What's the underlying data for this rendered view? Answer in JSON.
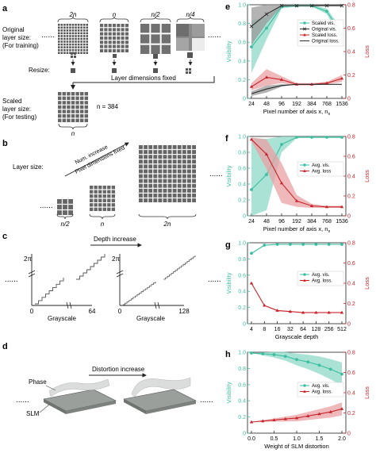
{
  "colors": {
    "teal": "#3bbfa1",
    "dark": "#2b2b2b",
    "red": "#c8242b",
    "teal_fill": "#8ed9c7",
    "red_fill": "#e9a0a3",
    "grey_fill": "#9a9a9a",
    "grid": "#6d6d6d"
  },
  "panels": {
    "a": {
      "letter": "a",
      "sizes": [
        "2n",
        "n",
        "n/2",
        "n/4"
      ],
      "original_label": [
        "Original",
        "layer size:",
        "(For training)"
      ],
      "resize_label": "Resize:",
      "fixed_label": "Layer dimensions fixed",
      "scaled_label": [
        "Scaled",
        "layer size:",
        "(For testing)"
      ],
      "n_value": "n = 384",
      "n_under": "n"
    },
    "b": {
      "letter": "b",
      "layer_size_label": "Layer size:",
      "arrow_text1": "Num. increase",
      "arrow_text2": "Pixel dimensions fixed",
      "sizes": [
        "n/2",
        "n",
        "2n"
      ]
    },
    "c": {
      "letter": "c",
      "depth_label": "Depth increase",
      "two_pi": "2π",
      "zero_a": "0",
      "end_a": "64",
      "zero_b": "0",
      "end_b": "128",
      "grayscale_a": "Grayscale",
      "grayscale_b": "Grayscale"
    },
    "d": {
      "letter": "d",
      "distortion_label": "Distortion increase",
      "phase_label": "Phase",
      "slm_label": "SLM"
    }
  },
  "chart_data": [
    {
      "id": "e",
      "letter": "e",
      "type": "line",
      "x_ticks": [
        "24",
        "48",
        "96",
        "192",
        "384",
        "768",
        "1536"
      ],
      "xlabel": "Pixel number of axis x, n",
      "xlabel_sub": "x",
      "ylabel_left": "Visibility",
      "ylabel_right": "Loss",
      "ylim_left": [
        0,
        1.0
      ],
      "ylim_right": [
        0,
        0.8
      ],
      "yticks_left": [
        "0",
        "0.2",
        "0.4",
        "0.6",
        "0.8",
        "1.0"
      ],
      "yticks_right": [
        "0",
        "0.2",
        "0.4",
        "0.6",
        "0.8"
      ],
      "legend": "top-right",
      "series": [
        {
          "name": "Scaled vis.",
          "axis": "left",
          "color": "teal",
          "marker": "circle",
          "values": [
            0.55,
            0.75,
            0.98,
            0.99,
            0.99,
            0.93,
            0.68
          ]
        },
        {
          "name": "Original vis.",
          "axis": "left",
          "color": "dark",
          "marker": "cross",
          "values": [
            0.77,
            0.9,
            0.99,
            0.99,
            0.99,
            0.99,
            0.99
          ]
        },
        {
          "name": "Scaled loss.",
          "axis": "right",
          "color": "red",
          "marker": "triangle",
          "values": [
            0.1,
            0.18,
            0.16,
            0.12,
            0.12,
            0.13,
            0.17
          ]
        },
        {
          "name": "Original loss.",
          "axis": "right",
          "color": "dark",
          "marker": "none",
          "values": [
            0.04,
            0.08,
            0.11,
            0.12,
            0.12,
            0.12,
            0.12
          ]
        }
      ]
    },
    {
      "id": "f",
      "letter": "f",
      "type": "line",
      "x_ticks": [
        "24",
        "48",
        "96",
        "192",
        "384",
        "768",
        "1536"
      ],
      "xlabel": "Pixel number of axis x, n",
      "xlabel_sub": "x",
      "ylabel_left": "Visibility",
      "ylabel_right": "Loss",
      "ylim_left": [
        0,
        1.0
      ],
      "ylim_right": [
        0,
        0.8
      ],
      "yticks_left": [
        "0",
        "0.2",
        "0.4",
        "0.6",
        "0.8",
        "1.0"
      ],
      "yticks_right": [
        "0",
        "0.2",
        "0.4",
        "0.6",
        "0.8"
      ],
      "legend": "center-right",
      "series": [
        {
          "name": "Avg. vis.",
          "axis": "left",
          "color": "teal",
          "marker": "circle",
          "values": [
            0.33,
            0.52,
            0.9,
            0.99,
            0.99,
            0.99,
            0.99
          ]
        },
        {
          "name": "Avg. loss",
          "axis": "right",
          "color": "red",
          "marker": "triangle",
          "values": [
            0.77,
            0.62,
            0.33,
            0.15,
            0.1,
            0.09,
            0.09
          ]
        }
      ]
    },
    {
      "id": "g",
      "letter": "g",
      "type": "line",
      "x_ticks": [
        "4",
        "8",
        "16",
        "32",
        "64",
        "128",
        "256",
        "512"
      ],
      "xlabel": "Grayscale depth",
      "ylabel_left": "Visibility",
      "ylabel_right": "Loss",
      "ylim_left": [
        0,
        1.0
      ],
      "ylim_right": [
        0,
        0.8
      ],
      "yticks_left": [
        "0",
        "0.2",
        "0.4",
        "0.6",
        "0.8",
        "1.0"
      ],
      "yticks_right": [
        "0",
        "0.2",
        "0.4",
        "0.6",
        "0.8"
      ],
      "legend": "center-right",
      "series": [
        {
          "name": "Avg. vis.",
          "axis": "left",
          "color": "teal",
          "marker": "circle",
          "values": [
            0.87,
            0.97,
            0.98,
            0.98,
            0.98,
            0.98,
            0.98,
            0.98
          ]
        },
        {
          "name": "Avg. loss.",
          "axis": "right",
          "color": "red",
          "marker": "triangle",
          "values": [
            0.4,
            0.18,
            0.13,
            0.12,
            0.11,
            0.11,
            0.11,
            0.11
          ]
        }
      ]
    },
    {
      "id": "h",
      "letter": "h",
      "type": "line",
      "x_ticks": [
        "0.0",
        "0.5",
        "1.0",
        "1.5",
        "2.0"
      ],
      "x_values": [
        0.0,
        0.25,
        0.5,
        0.75,
        1.0,
        1.25,
        1.5,
        1.75,
        2.0
      ],
      "xlabel": "Weight of SLM distortion",
      "ylabel_left": "Visibility",
      "ylabel_right": "Loss",
      "ylim_left": [
        0,
        1.0
      ],
      "ylim_right": [
        0,
        0.8
      ],
      "yticks_left": [
        "0",
        "0.2",
        "0.4",
        "0.6",
        "0.8",
        "1.0"
      ],
      "yticks_right": [
        "0",
        "0.2",
        "0.4",
        "0.6",
        "0.8"
      ],
      "legend": "center-right",
      "series": [
        {
          "name": "Avg. vis.",
          "axis": "left",
          "color": "teal",
          "marker": "circle",
          "values": [
            0.99,
            0.98,
            0.97,
            0.95,
            0.91,
            0.88,
            0.84,
            0.79,
            0.73
          ]
        },
        {
          "name": "Avg. loss.",
          "axis": "right",
          "color": "red",
          "marker": "triangle",
          "values": [
            0.11,
            0.12,
            0.13,
            0.14,
            0.15,
            0.17,
            0.19,
            0.21,
            0.24
          ]
        }
      ]
    }
  ]
}
